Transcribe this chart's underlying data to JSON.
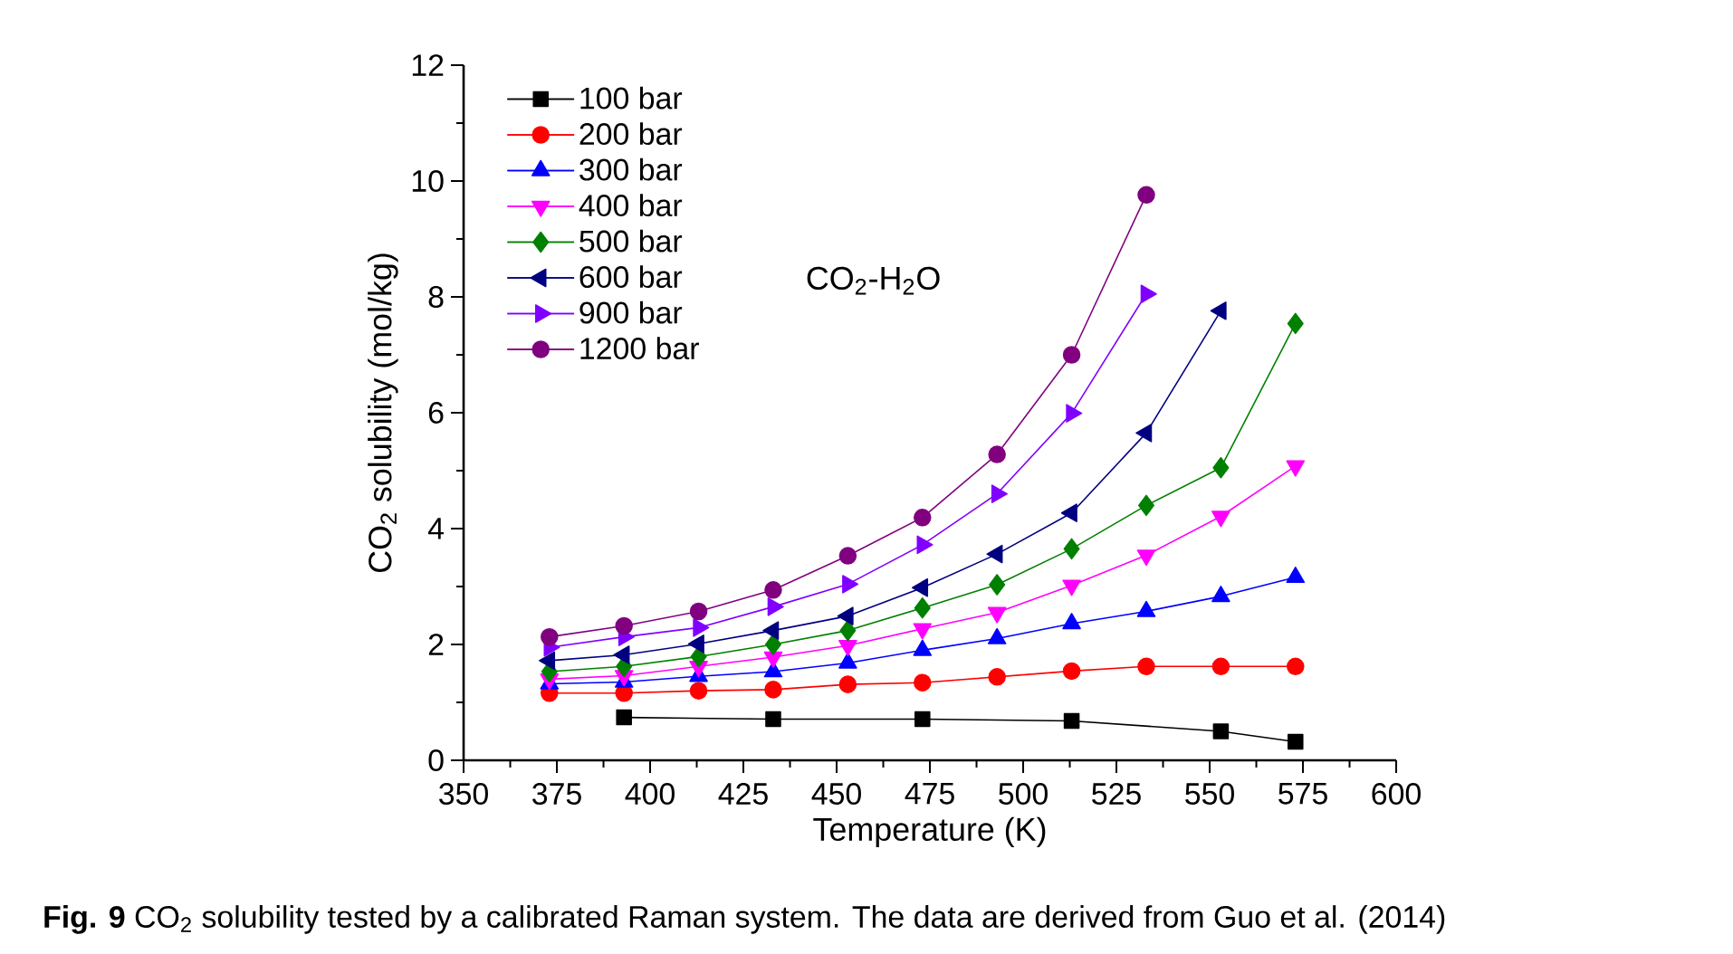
{
  "chart_data": {
    "type": "line",
    "xlabel": "Temperature (K)",
    "ylabel": "CO$_{2}$ solubility (mol/kg)",
    "annotations": [
      "CO$_{2}$-H$_{2}$O",
      "**Fig. 9**  CO$_{2}$ solubility tested by a calibrated Raman system. The data are derived from Guo et al. (2014)"
    ],
    "x": [
      373,
      393,
      413,
      433,
      453,
      473,
      493,
      513,
      533,
      553,
      573
    ],
    "xlim": [
      350,
      600
    ],
    "xticks": [
      350,
      375,
      400,
      425,
      450,
      475,
      500,
      525,
      550,
      575,
      600
    ],
    "ylim": [
      0,
      12
    ],
    "yticks": [
      0,
      2,
      4,
      6,
      8,
      10,
      12
    ],
    "legend": "top left",
    "grid": false,
    "line_style": "solid",
    "series": [
      {
        "name": "100 bar",
        "color": "#000000",
        "marker": "square",
        "values": [
          null,
          0.74,
          null,
          0.71,
          null,
          0.71,
          null,
          0.68,
          null,
          0.5,
          0.32
        ]
      },
      {
        "name": "200 bar",
        "color": "#ff0000",
        "marker": "circle",
        "values": [
          1.16,
          1.16,
          1.2,
          1.22,
          1.31,
          1.34,
          1.44,
          1.54,
          1.62,
          1.62,
          1.62
        ]
      },
      {
        "name": "300 bar",
        "color": "#0000ff",
        "marker": "triangle",
        "values": [
          1.32,
          1.35,
          1.45,
          1.53,
          1.68,
          1.9,
          2.1,
          2.36,
          2.57,
          2.83,
          3.16
        ]
      },
      {
        "name": "400 bar",
        "color": "#ff00ff",
        "marker": "triangle-down",
        "values": [
          1.4,
          1.46,
          1.62,
          1.78,
          1.98,
          2.27,
          2.55,
          3.02,
          3.54,
          4.21,
          5.08
        ]
      },
      {
        "name": "500 bar",
        "color": "#008000",
        "marker": "diamond",
        "values": [
          1.53,
          1.62,
          1.79,
          2.0,
          2.24,
          2.63,
          3.03,
          3.65,
          4.4,
          5.05,
          7.54
        ]
      },
      {
        "name": "600 bar",
        "color": "#000080",
        "marker": "triangle-left",
        "values": [
          1.72,
          1.82,
          2.01,
          2.24,
          2.49,
          2.98,
          3.56,
          4.27,
          5.65,
          7.76,
          null
        ]
      },
      {
        "name": "900 bar",
        "color": "#8000ff",
        "marker": "triangle-right",
        "values": [
          1.95,
          2.13,
          2.29,
          2.65,
          3.04,
          3.72,
          4.6,
          5.99,
          8.05,
          null,
          null
        ]
      },
      {
        "name": "1200 bar",
        "color": "#800080",
        "marker": "circle",
        "values": [
          2.13,
          2.32,
          2.57,
          2.94,
          3.53,
          4.19,
          5.28,
          7.0,
          9.76,
          null,
          null
        ]
      }
    ]
  }
}
